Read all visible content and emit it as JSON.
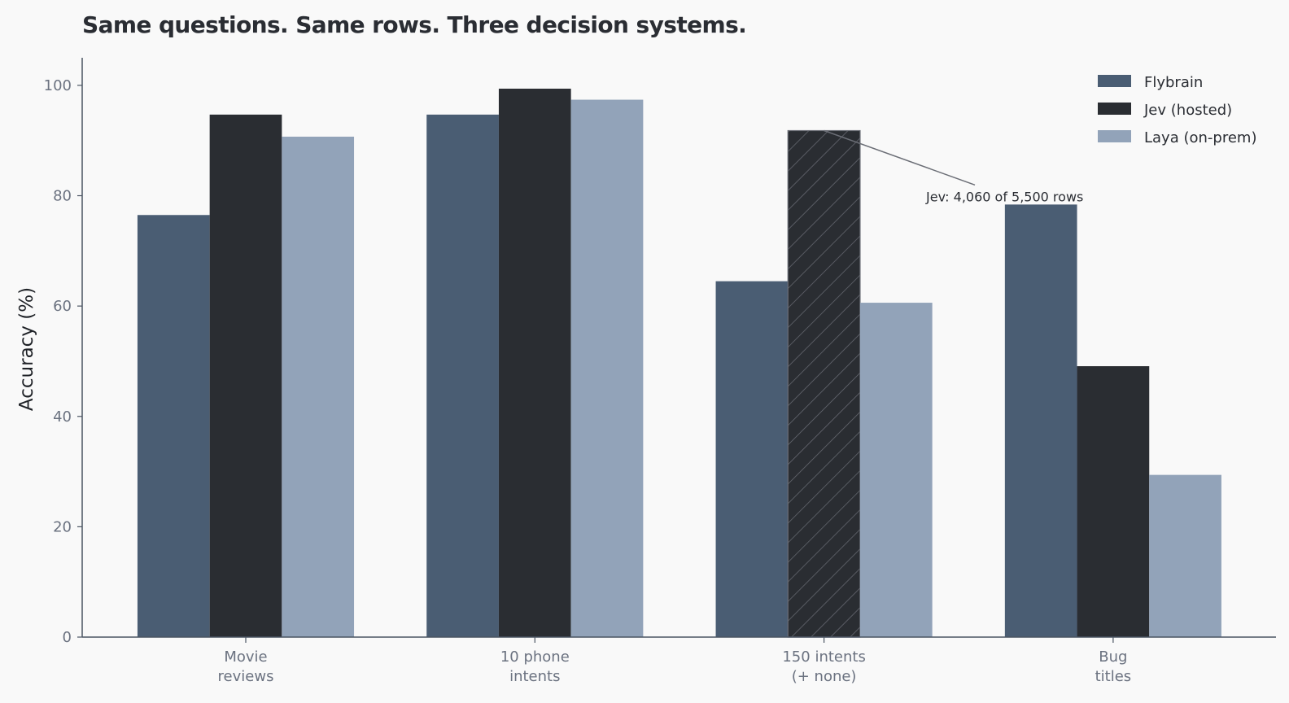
{
  "colors": {
    "background": "#f9f9f9",
    "axis": "#4b5563",
    "tick_text": "#6b7280"
  },
  "chart_data": {
    "type": "bar",
    "title": "Same questions. Same rows. Three decision systems.",
    "xlabel": "",
    "ylabel": "Accuracy (%)",
    "ylim": [
      0,
      105
    ],
    "yticks": [
      0,
      20,
      40,
      60,
      80,
      100
    ],
    "grid": false,
    "legend_position": "top-right",
    "categories": [
      [
        "Movie",
        "reviews"
      ],
      [
        "10 phone",
        "intents"
      ],
      [
        "150 intents",
        "(+ none)"
      ],
      [
        "Bug",
        "titles"
      ]
    ],
    "series": [
      {
        "name": "Flybrain",
        "color": "#4a5d73",
        "values": [
          76.5,
          94.7,
          64.5,
          78.4
        ]
      },
      {
        "name": "Jev (hosted)",
        "color": "#2a2d32",
        "values": [
          94.7,
          99.4,
          91.8,
          49.1
        ]
      },
      {
        "name": "Laya (on-prem)",
        "color": "#92a3b9",
        "values": [
          90.7,
          97.4,
          60.6,
          29.4
        ]
      }
    ],
    "hatched": [
      {
        "series": 1,
        "category": 2
      }
    ],
    "annotations": [
      {
        "text": "Jev: 4,060 of 5,500 rows",
        "series": 1,
        "category": 2,
        "text_y": 79
      }
    ]
  }
}
